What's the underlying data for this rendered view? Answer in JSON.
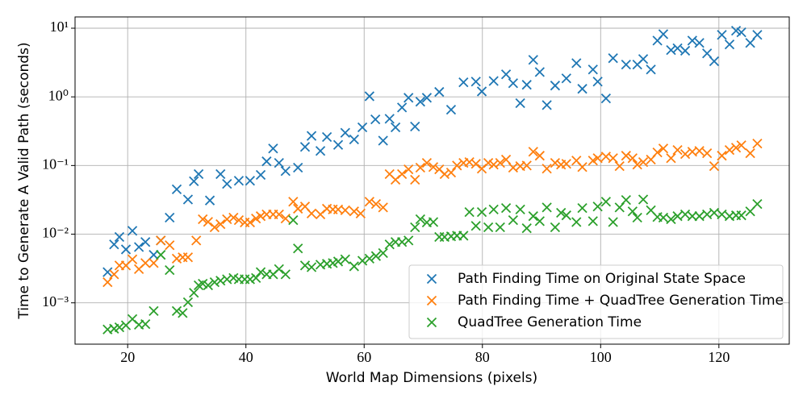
{
  "chart_data": {
    "type": "scatter",
    "xlabel": "World Map Dimensions (pixels)",
    "ylabel": "Time to Generate A Valid Path (seconds)",
    "xlim": [
      11.1,
      131.9
    ],
    "ylim": [
      0.00025,
      14.6
    ],
    "yscale": "log",
    "grid": true,
    "legend": "lower right",
    "xticks": [
      20,
      40,
      60,
      80,
      100,
      120
    ],
    "yticks": [
      {
        "value": 0.001,
        "label": "10⁻³"
      },
      {
        "value": 0.01,
        "label": "10⁻²"
      },
      {
        "value": 0.1,
        "label": "10⁻¹"
      },
      {
        "value": 1,
        "label": "10⁰"
      },
      {
        "value": 10,
        "label": "10¹"
      }
    ],
    "series": [
      {
        "name": "Path Finding Time on Original State Space",
        "color": "#1f77b4",
        "x": [
          16.6,
          17.7,
          18.6,
          19.7,
          20.8,
          21.9,
          23.0,
          24.4,
          25.6,
          27.1,
          28.3,
          30.2,
          31.2,
          32.0,
          33.9,
          35.7,
          36.8,
          38.8,
          40.7,
          42.5,
          43.5,
          44.6,
          45.6,
          46.7,
          48.8,
          50.0,
          51.1,
          52.6,
          53.7,
          55.6,
          56.8,
          58.3,
          59.7,
          60.9,
          61.9,
          63.2,
          64.3,
          65.3,
          66.4,
          67.5,
          68.6,
          69.5,
          70.6,
          72.7,
          74.7,
          76.8,
          78.9,
          79.9,
          81.9,
          84.0,
          85.2,
          86.4,
          87.5,
          88.6,
          89.7,
          90.9,
          92.3,
          94.2,
          95.9,
          96.9,
          98.7,
          99.5,
          100.9,
          102.1,
          104.3,
          106.2,
          107.2,
          108.5,
          109.6,
          110.6,
          111.9,
          113.0,
          114.3,
          115.5,
          116.7,
          118.0,
          119.2,
          120.5,
          121.8,
          122.9,
          123.8,
          125.3,
          126.5
        ],
        "values": [
          0.0028,
          0.0071,
          0.0091,
          0.006,
          0.0112,
          0.0065,
          0.0077,
          0.005,
          0.0081,
          0.0174,
          0.045,
          0.032,
          0.059,
          0.075,
          0.031,
          0.075,
          0.054,
          0.06,
          0.06,
          0.073,
          0.115,
          0.177,
          0.109,
          0.083,
          0.093,
          0.187,
          0.27,
          0.163,
          0.26,
          0.2,
          0.3,
          0.24,
          0.36,
          1.02,
          0.47,
          0.23,
          0.48,
          0.36,
          0.7,
          0.97,
          0.37,
          0.85,
          0.97,
          1.18,
          0.65,
          1.63,
          1.67,
          1.2,
          1.7,
          2.13,
          1.58,
          0.81,
          1.5,
          3.46,
          2.3,
          0.76,
          1.46,
          1.86,
          3.1,
          1.31,
          2.5,
          1.67,
          0.95,
          3.66,
          2.95,
          2.95,
          3.56,
          2.5,
          6.6,
          8.2,
          4.8,
          5.1,
          4.7,
          6.6,
          6.1,
          4.3,
          3.3,
          8.0,
          5.8,
          9.2,
          8.7,
          6.1,
          8.0
        ]
      },
      {
        "name": "Path Finding Time + QuadTree Generation Time",
        "color": "#ff7f0e",
        "x": [
          16.6,
          17.7,
          18.6,
          19.7,
          20.8,
          21.9,
          23.0,
          24.4,
          25.6,
          27.1,
          28.3,
          29.3,
          30.2,
          31.6,
          32.7,
          33.6,
          34.7,
          35.7,
          36.8,
          37.9,
          38.8,
          39.8,
          40.7,
          41.7,
          42.5,
          43.5,
          44.6,
          45.6,
          46.7,
          48.0,
          48.8,
          50.0,
          51.1,
          52.6,
          53.7,
          54.7,
          55.6,
          56.8,
          58.3,
          59.4,
          60.9,
          62.0,
          63.2,
          64.3,
          65.3,
          66.4,
          67.5,
          68.6,
          69.5,
          70.6,
          71.7,
          72.7,
          73.6,
          74.7,
          75.7,
          76.8,
          77.8,
          78.9,
          79.9,
          81.0,
          81.9,
          83.0,
          84.0,
          85.2,
          86.4,
          87.5,
          88.6,
          89.7,
          90.9,
          92.3,
          93.3,
          94.2,
          95.9,
          96.9,
          98.7,
          99.5,
          100.9,
          102.1,
          103.2,
          104.3,
          105.4,
          106.2,
          107.2,
          108.5,
          109.6,
          110.6,
          111.9,
          113.0,
          114.3,
          115.5,
          116.7,
          118.0,
          119.2,
          120.5,
          121.8,
          122.9,
          123.8,
          125.3,
          126.5
        ],
        "values": [
          0.002,
          0.0026,
          0.0035,
          0.0035,
          0.0043,
          0.0031,
          0.0038,
          0.0038,
          0.0081,
          0.0069,
          0.0044,
          0.0046,
          0.0046,
          0.0081,
          0.0165,
          0.0151,
          0.0126,
          0.014,
          0.0165,
          0.0174,
          0.016,
          0.0148,
          0.0148,
          0.0169,
          0.0183,
          0.0194,
          0.0194,
          0.0194,
          0.0169,
          0.0297,
          0.0235,
          0.0253,
          0.02,
          0.0194,
          0.0235,
          0.0229,
          0.0229,
          0.0223,
          0.0215,
          0.02,
          0.0297,
          0.0275,
          0.0245,
          0.075,
          0.062,
          0.075,
          0.088,
          0.062,
          0.093,
          0.109,
          0.095,
          0.088,
          0.075,
          0.079,
          0.1,
          0.109,
          0.112,
          0.106,
          0.09,
          0.109,
          0.103,
          0.109,
          0.122,
          0.093,
          0.098,
          0.1,
          0.159,
          0.139,
          0.09,
          0.109,
          0.103,
          0.106,
          0.118,
          0.095,
          0.118,
          0.128,
          0.135,
          0.128,
          0.098,
          0.139,
          0.128,
          0.103,
          0.112,
          0.122,
          0.155,
          0.177,
          0.128,
          0.168,
          0.147,
          0.159,
          0.163,
          0.151,
          0.098,
          0.139,
          0.168,
          0.182,
          0.197,
          0.151,
          0.209
        ]
      },
      {
        "name": "QuadTree Generation Time",
        "color": "#2ca02c",
        "x": [
          16.6,
          17.7,
          18.6,
          19.7,
          20.8,
          21.9,
          23.0,
          24.4,
          25.6,
          27.1,
          28.3,
          29.3,
          30.2,
          31.2,
          32.0,
          32.7,
          33.6,
          34.7,
          35.7,
          36.8,
          37.9,
          38.8,
          39.8,
          40.7,
          41.7,
          42.5,
          43.5,
          44.6,
          45.6,
          46.7,
          48.0,
          48.8,
          50.0,
          51.1,
          52.6,
          53.7,
          54.7,
          55.6,
          56.8,
          58.3,
          59.7,
          60.9,
          62.0,
          63.2,
          64.3,
          65.3,
          66.4,
          67.5,
          68.6,
          69.5,
          70.6,
          71.7,
          72.7,
          73.6,
          74.7,
          75.7,
          76.8,
          77.8,
          78.9,
          79.9,
          81.0,
          81.9,
          83.0,
          84.0,
          85.2,
          86.4,
          87.5,
          88.6,
          89.7,
          90.9,
          92.3,
          93.3,
          94.2,
          95.9,
          96.9,
          98.7,
          99.5,
          100.9,
          102.1,
          103.2,
          104.3,
          105.4,
          106.2,
          107.2,
          108.5,
          109.6,
          110.6,
          111.9,
          113.0,
          114.3,
          115.5,
          116.7,
          118.0,
          119.2,
          120.5,
          121.8,
          122.9,
          123.8,
          125.3,
          126.5
        ],
        "values": [
          0.00041,
          0.00042,
          0.00044,
          0.00047,
          0.00058,
          0.00048,
          0.00049,
          0.00076,
          0.005,
          0.003,
          0.00076,
          0.00071,
          0.00102,
          0.0014,
          0.0018,
          0.0019,
          0.0018,
          0.002,
          0.0021,
          0.0022,
          0.0023,
          0.0022,
          0.0022,
          0.0022,
          0.0023,
          0.0028,
          0.0026,
          0.0026,
          0.0031,
          0.0026,
          0.016,
          0.0062,
          0.0035,
          0.0033,
          0.0036,
          0.0037,
          0.0038,
          0.004,
          0.0043,
          0.0034,
          0.0041,
          0.0044,
          0.0048,
          0.0053,
          0.0071,
          0.0077,
          0.0077,
          0.0081,
          0.0126,
          0.0165,
          0.0148,
          0.015,
          0.0091,
          0.0091,
          0.0093,
          0.0095,
          0.0095,
          0.021,
          0.0132,
          0.021,
          0.0126,
          0.0229,
          0.0126,
          0.024,
          0.016,
          0.0229,
          0.0122,
          0.0183,
          0.0155,
          0.0245,
          0.0126,
          0.0205,
          0.0188,
          0.015,
          0.024,
          0.0155,
          0.0253,
          0.0297,
          0.015,
          0.0245,
          0.0315,
          0.0215,
          0.0174,
          0.032,
          0.0223,
          0.0178,
          0.0174,
          0.0165,
          0.0183,
          0.0194,
          0.0183,
          0.0183,
          0.0194,
          0.0205,
          0.0194,
          0.0183,
          0.0188,
          0.0188,
          0.0215,
          0.0275
        ]
      }
    ]
  }
}
